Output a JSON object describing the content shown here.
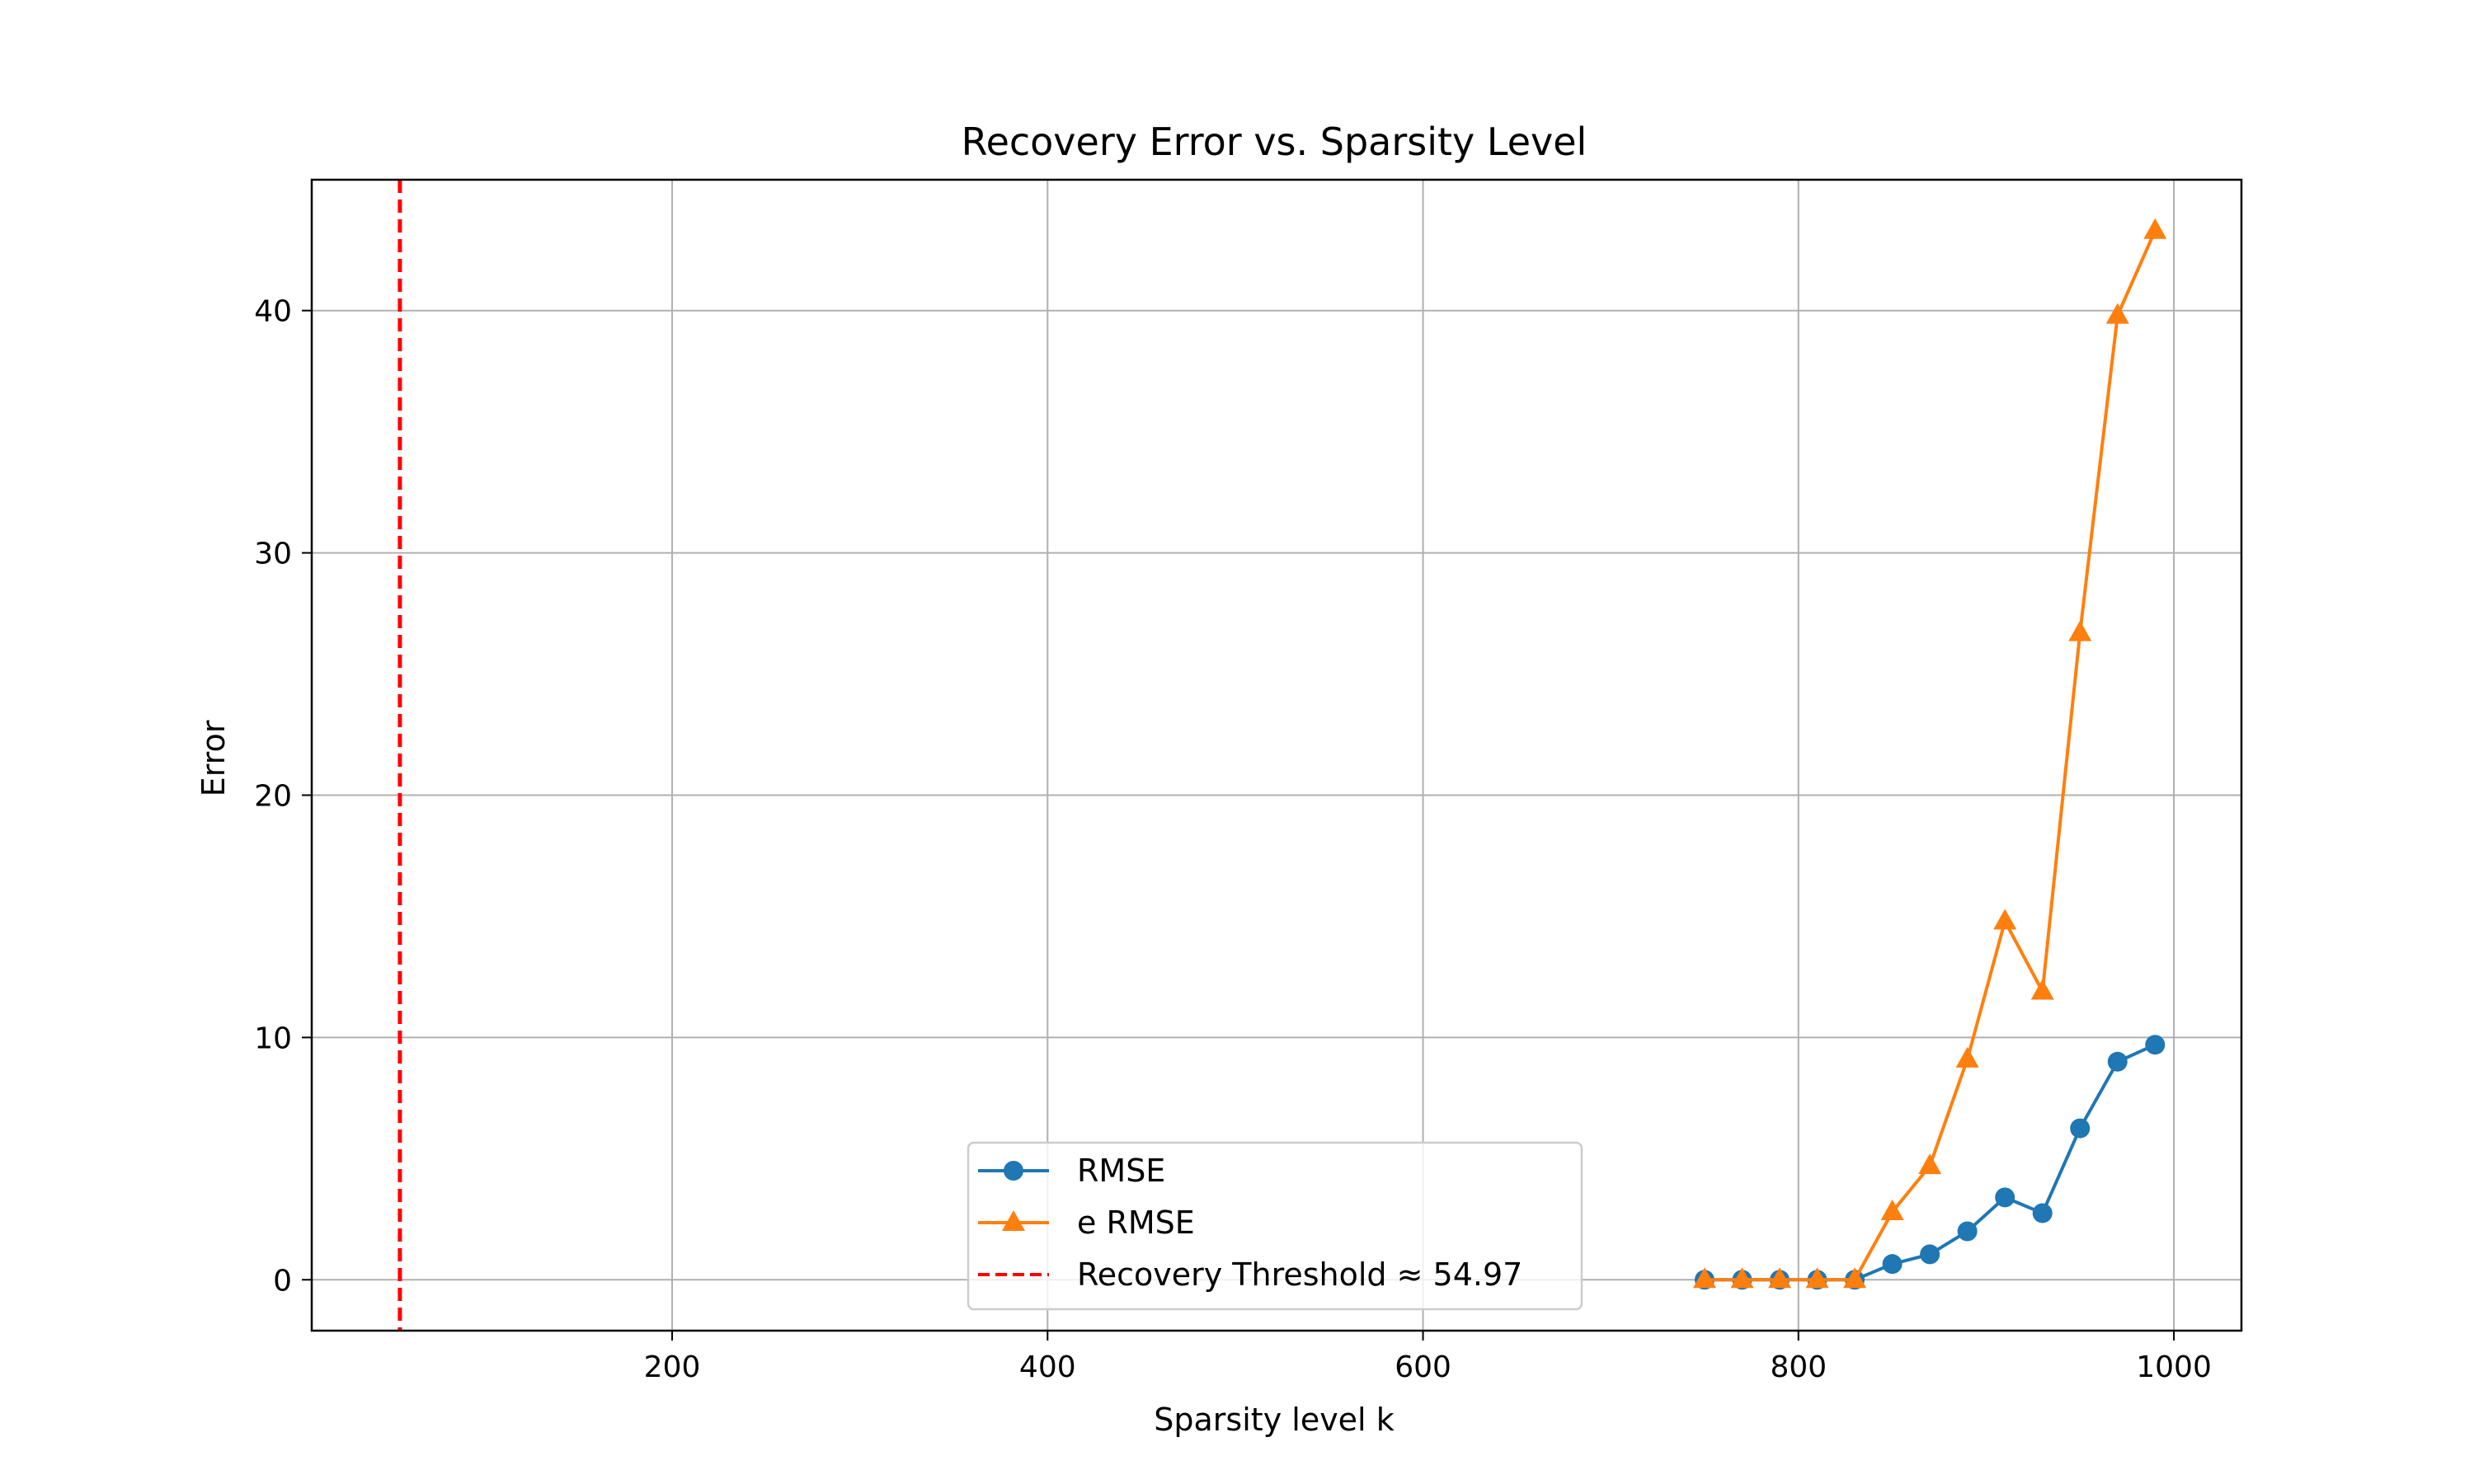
{
  "chart_data": {
    "type": "line",
    "title": "Recovery Error vs. Sparsity Level",
    "xlabel": "Sparsity level k",
    "ylabel": "Error",
    "xlim": [
      8,
      1036
    ],
    "ylim": [
      -2.1,
      45.4
    ],
    "xticks": [
      200,
      400,
      600,
      800,
      1000
    ],
    "yticks": [
      0,
      10,
      20,
      30,
      40
    ],
    "xtick_labels": [
      "200",
      "400",
      "600",
      "800",
      "1000"
    ],
    "ytick_labels": [
      "0",
      "10",
      "20",
      "30",
      "40"
    ],
    "grid": true,
    "legend_position": "lower center",
    "x": [
      750,
      770,
      790,
      810,
      830,
      850,
      870,
      890,
      910,
      930,
      950,
      970,
      990
    ],
    "series": [
      {
        "name": "RMSE",
        "color": "#1f77b4",
        "marker": "circle",
        "values": [
          0.0,
          0.0,
          0.0,
          0.0,
          0.0,
          0.65,
          1.05,
          2.0,
          3.4,
          2.75,
          6.25,
          9.0,
          9.7
        ]
      },
      {
        "name": "e RMSE",
        "color": "#ff7f0e",
        "marker": "triangle",
        "values": [
          0.0,
          0.0,
          0.0,
          0.0,
          0.0,
          2.8,
          4.7,
          9.1,
          14.8,
          11.9,
          26.7,
          39.8,
          43.3
        ]
      }
    ],
    "threshold": {
      "label": "Recovery Threshold ≈ 54.97",
      "x": 54.97,
      "color": "#ff0000",
      "style": "dashed"
    }
  }
}
